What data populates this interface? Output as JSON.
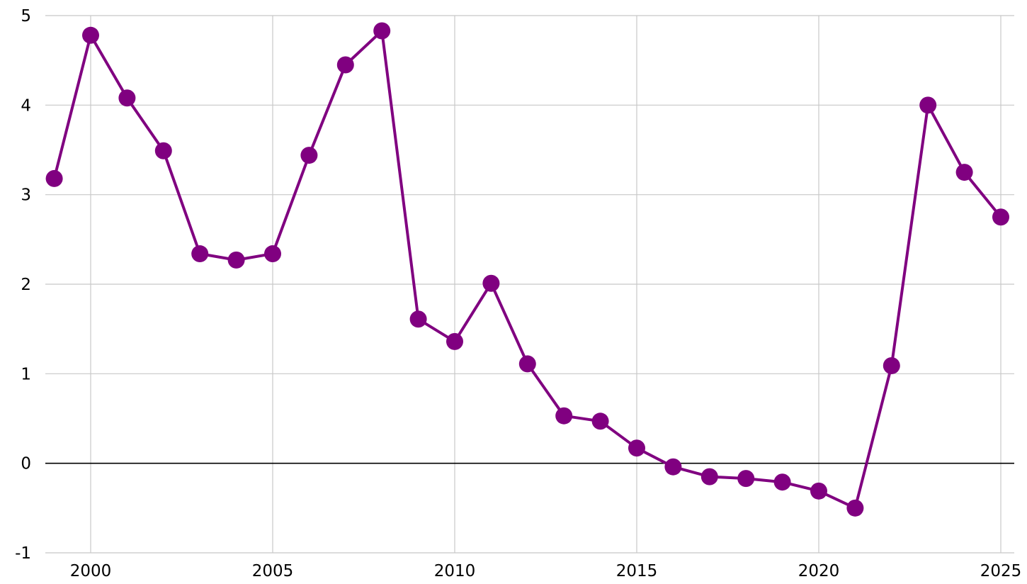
{
  "chart_data": {
    "type": "line",
    "title": "",
    "xlabel": "",
    "ylabel": "",
    "xlim": [
      1999,
      2025.3
    ],
    "ylim": [
      -1,
      5
    ],
    "grid": true,
    "legend": "none",
    "x_ticks": [
      2000,
      2005,
      2010,
      2015,
      2020,
      2025
    ],
    "x_tick_labels": [
      "2000",
      "2005",
      "2010",
      "2015",
      "2020",
      "2025"
    ],
    "y_ticks": [
      -1,
      0,
      1,
      2,
      3,
      4,
      5
    ],
    "y_tick_labels": [
      "-1",
      "0",
      "1",
      "2",
      "3",
      "4",
      "5"
    ],
    "series": [
      {
        "color": "#800080",
        "x": [
          1999,
          2000,
          2001,
          2002,
          2003,
          2004,
          2005,
          2006,
          2007,
          2008,
          2009,
          2010,
          2011,
          2012,
          2013,
          2014,
          2015,
          2016,
          2017,
          2018,
          2019,
          2020,
          2021,
          2022,
          2023,
          2024,
          2025
        ],
        "values": [
          3.18,
          4.78,
          4.08,
          3.49,
          2.34,
          2.27,
          2.34,
          3.44,
          4.45,
          4.83,
          1.61,
          1.36,
          2.01,
          1.11,
          0.53,
          0.47,
          0.17,
          -0.04,
          -0.15,
          -0.17,
          -0.21,
          -0.31,
          -0.5,
          1.09,
          4.0,
          3.25,
          2.75
        ]
      }
    ]
  }
}
